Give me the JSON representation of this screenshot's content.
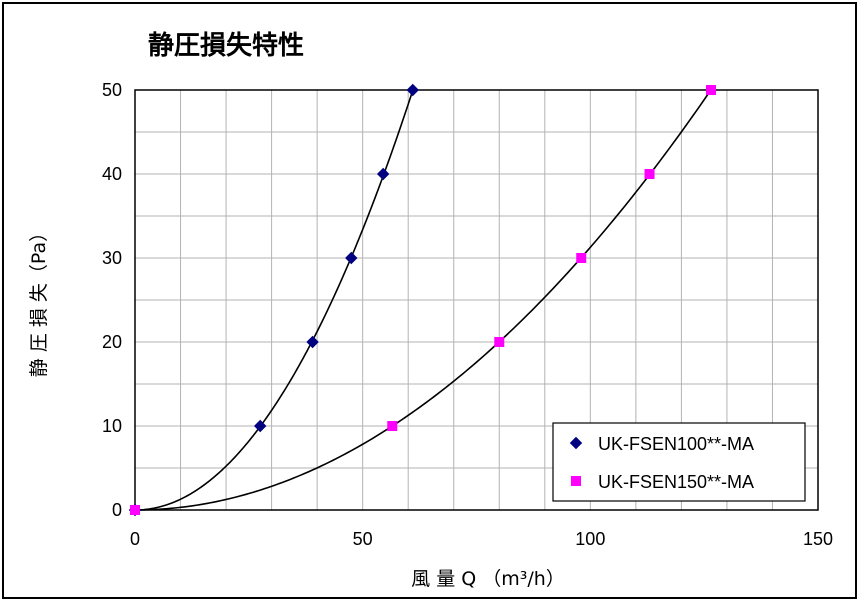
{
  "chart_data": {
    "type": "scatter",
    "title": "静圧損失特性",
    "xlabel": "風 量 Q （m³/h）",
    "ylabel": "静 圧 損 失（Pa）",
    "xlim": [
      0,
      150
    ],
    "ylim": [
      0,
      50
    ],
    "x_ticks": [
      0,
      50,
      100,
      150
    ],
    "y_ticks": [
      0,
      10,
      20,
      30,
      40,
      50
    ],
    "grid": true,
    "legend_position": "bottom-right",
    "series": [
      {
        "name": "UK-FSEN100**-MA",
        "marker": "diamond",
        "color": "#000080",
        "trendline": "power",
        "points": [
          {
            "x": 0,
            "y": 0
          },
          {
            "x": 27.5,
            "y": 10
          },
          {
            "x": 39,
            "y": 20
          },
          {
            "x": 47.5,
            "y": 30
          },
          {
            "x": 54.5,
            "y": 40
          },
          {
            "x": 61,
            "y": 50
          }
        ]
      },
      {
        "name": "UK-FSEN150**-MA",
        "marker": "square",
        "color": "#ff00ff",
        "trendline": "power",
        "points": [
          {
            "x": 0,
            "y": 0
          },
          {
            "x": 56.5,
            "y": 10
          },
          {
            "x": 80,
            "y": 20
          },
          {
            "x": 98,
            "y": 30
          },
          {
            "x": 113,
            "y": 40
          },
          {
            "x": 126.5,
            "y": 50
          }
        ]
      }
    ]
  }
}
